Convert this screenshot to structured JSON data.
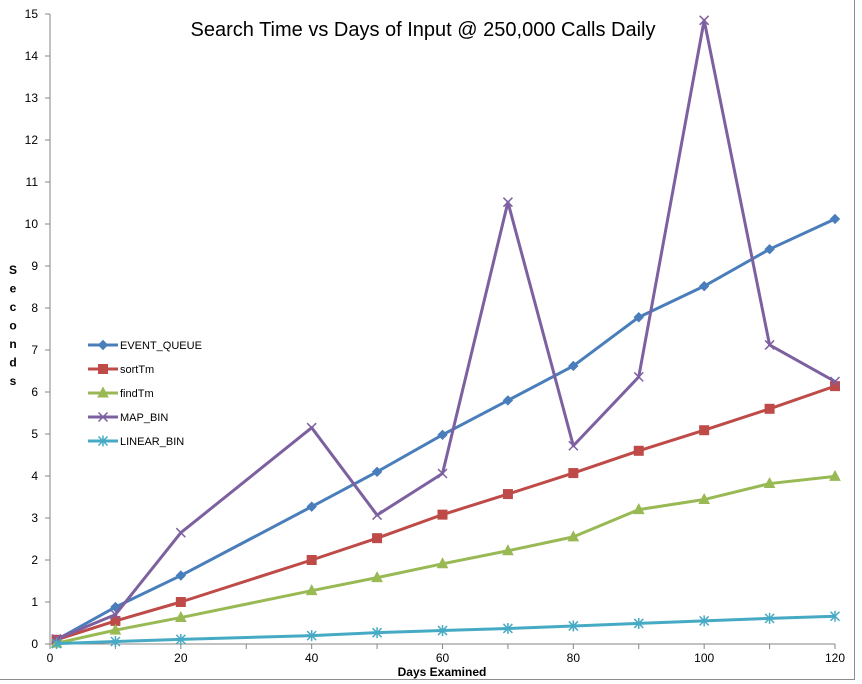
{
  "chart_data": {
    "type": "line",
    "title": "Search Time vs Days of Input @ 250,000 Calls Daily",
    "xlabel": "Days Examined",
    "ylabel": "Seconds",
    "xlim": [
      0,
      120
    ],
    "ylim": [
      0,
      15
    ],
    "xticks": [
      0,
      20,
      40,
      60,
      80,
      100,
      120
    ],
    "yticks": [
      0,
      1,
      2,
      3,
      4,
      5,
      6,
      7,
      8,
      9,
      10,
      11,
      12,
      13,
      14,
      15
    ],
    "grid": false,
    "legend_position": "left",
    "series": [
      {
        "name": "EVENT_QUEUE",
        "color": "#4a7ebb",
        "marker": "diamond",
        "x": [
          1,
          10,
          20,
          40,
          50,
          60,
          70,
          80,
          90,
          100,
          110,
          120
        ],
        "y": [
          0.1,
          0.88,
          1.63,
          3.27,
          4.1,
          4.98,
          5.8,
          6.62,
          7.78,
          8.52,
          9.4,
          10.12
        ]
      },
      {
        "name": "sortTm",
        "color": "#be4b48",
        "marker": "square",
        "x": [
          1,
          10,
          20,
          40,
          50,
          60,
          70,
          80,
          90,
          100,
          110,
          120
        ],
        "y": [
          0.1,
          0.55,
          1.0,
          2.0,
          2.52,
          3.08,
          3.57,
          4.07,
          4.6,
          5.09,
          5.6,
          6.14
        ]
      },
      {
        "name": "findTm",
        "color": "#98b954",
        "marker": "triangle",
        "x": [
          1,
          10,
          20,
          40,
          50,
          60,
          70,
          80,
          90,
          100,
          110,
          120
        ],
        "y": [
          0.02,
          0.33,
          0.63,
          1.27,
          1.58,
          1.91,
          2.22,
          2.55,
          3.2,
          3.44,
          3.82,
          3.99
        ]
      },
      {
        "name": "MAP_BIN",
        "color": "#7d60a0",
        "marker": "x",
        "x": [
          1,
          10,
          20,
          40,
          50,
          60,
          70,
          80,
          90,
          100,
          110,
          120
        ],
        "y": [
          0.12,
          0.7,
          2.65,
          5.15,
          3.07,
          4.06,
          10.52,
          4.72,
          6.36,
          14.85,
          7.12,
          6.25
        ]
      },
      {
        "name": "LINEAR_BIN",
        "color": "#46aac5",
        "marker": "star",
        "x": [
          1,
          10,
          20,
          40,
          50,
          60,
          70,
          80,
          90,
          100,
          110,
          120
        ],
        "y": [
          0.01,
          0.06,
          0.11,
          0.2,
          0.27,
          0.32,
          0.37,
          0.43,
          0.49,
          0.55,
          0.61,
          0.66
        ]
      }
    ]
  }
}
